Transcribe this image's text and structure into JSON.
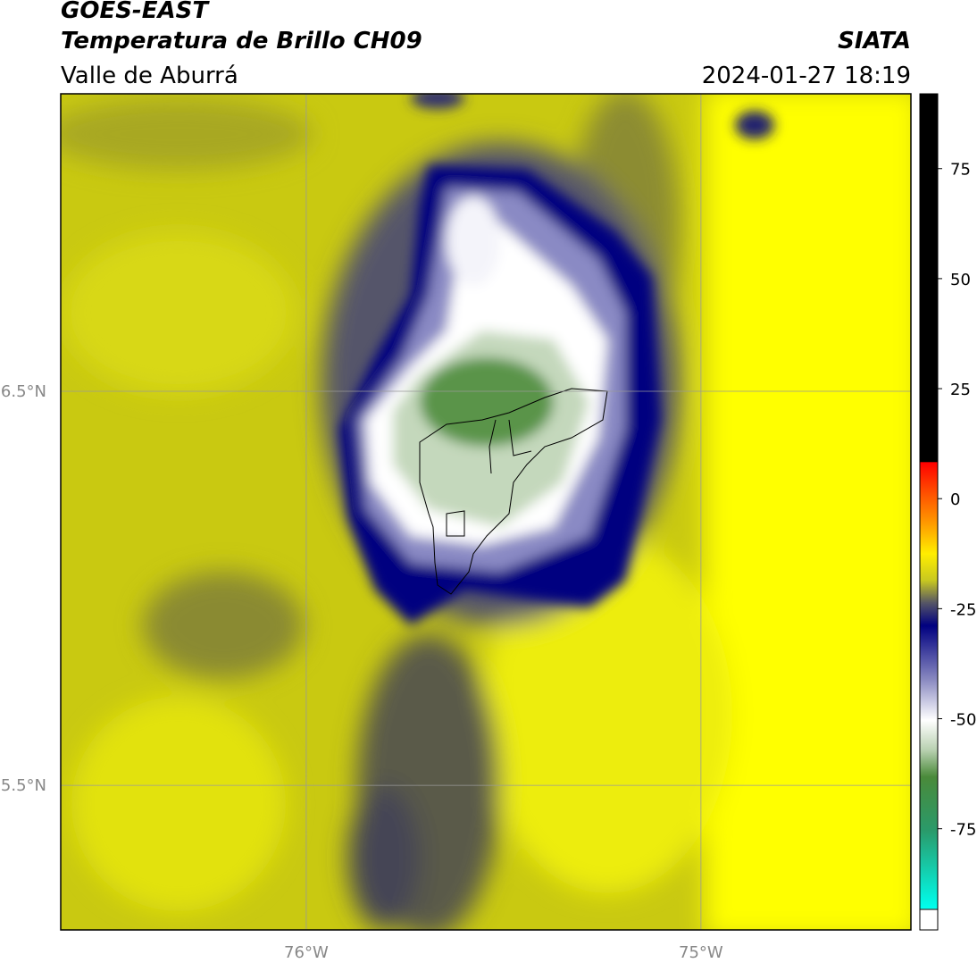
{
  "header": {
    "title": "GOES-EAST",
    "subtitle": "Temperatura de Brillo CH09",
    "region": "Valle de Aburrá",
    "source": "SIATA",
    "datetime": "2024-01-27 18:19"
  },
  "map": {
    "xlim": [
      -76.622,
      -74.468
    ],
    "ylim": [
      5.133,
      7.255
    ],
    "xticks": [
      {
        "value": -76,
        "label": "76°W"
      },
      {
        "value": -75,
        "label": "75°W"
      }
    ],
    "yticks": [
      {
        "value": 5.5,
        "label": "5.5°N"
      },
      {
        "value": 6.5,
        "label": "6.5°N"
      }
    ],
    "grid": true
  },
  "colorbar": {
    "clim": [
      -98,
      92
    ],
    "ticks": [
      -75,
      -50,
      -25,
      0,
      25,
      50,
      75
    ]
  }
}
